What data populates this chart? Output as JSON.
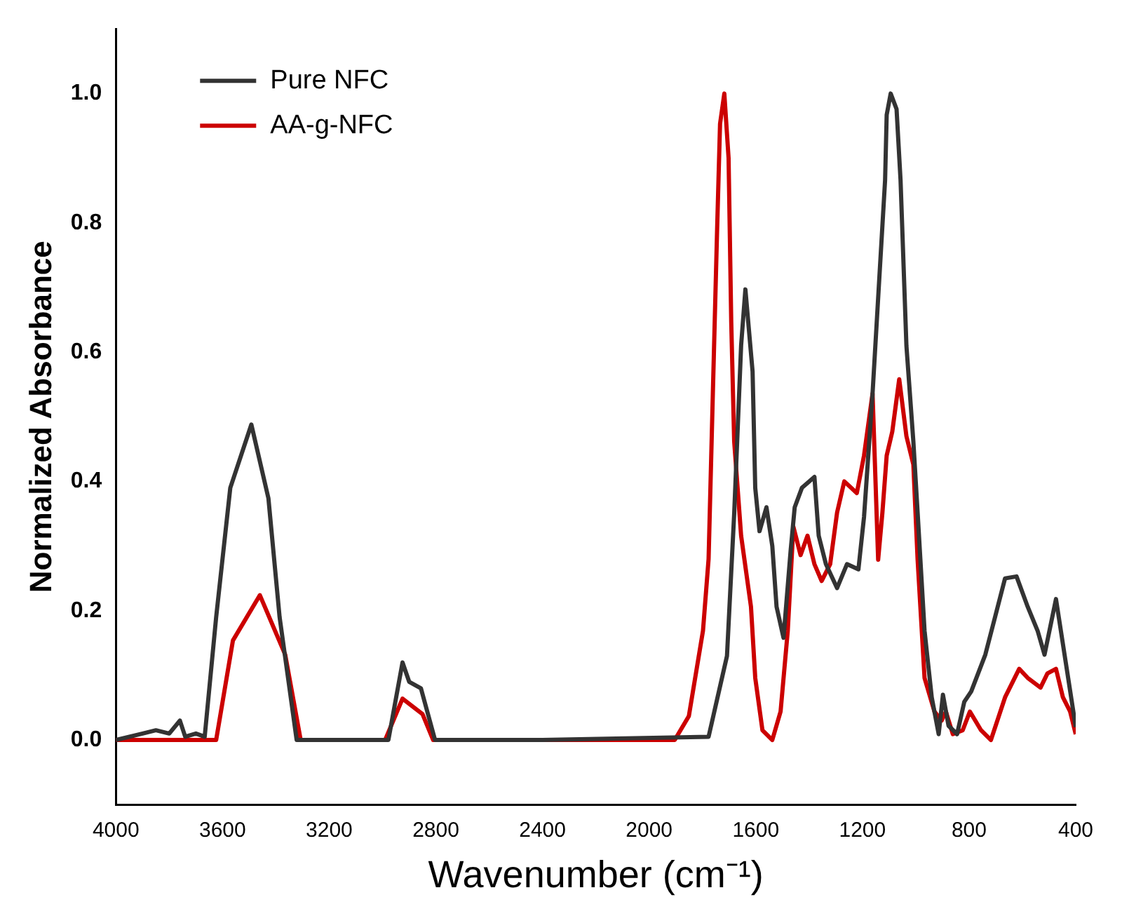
{
  "chart_data": {
    "type": "line",
    "xlabel": "Wavenumber (cm⁻¹)",
    "ylabel": "Normalized Absorbance",
    "xlim": [
      4000,
      400
    ],
    "xticks": [
      4000,
      3600,
      3200,
      2800,
      2400,
      2000,
      1600,
      1200,
      800,
      400
    ],
    "ylim": [
      -0.1,
      1.1
    ],
    "yticks": [
      {
        "value": 0,
        "label": "0.0"
      },
      {
        "value": 0.2,
        "label": "0.2"
      },
      {
        "value": 0.4,
        "label": "0.4"
      },
      {
        "value": 0.6,
        "label": "0.6"
      },
      {
        "value": 0.8,
        "label": "0.8"
      },
      {
        "value": 1,
        "label": "1.0"
      }
    ],
    "grid": false,
    "legend": "top left",
    "marker": "none",
    "line_style": "solid",
    "series": [
      {
        "name": "Pure NFC",
        "color": "#333333",
        "x": [
          4000,
          3900,
          3850,
          3800,
          3760,
          3740,
          3700,
          3667,
          3624,
          3571,
          3492,
          3428,
          3386,
          3322,
          2978,
          2925,
          2900,
          2856,
          2803,
          2400,
          1777,
          1708,
          1681,
          1655,
          1639,
          1612,
          1602,
          1586,
          1560,
          1538,
          1522,
          1496,
          1469,
          1454,
          1427,
          1380,
          1364,
          1337,
          1295,
          1258,
          1215,
          1194,
          1162,
          1136,
          1115,
          1109,
          1094,
          1072,
          1057,
          1035,
          1009,
          993,
          967,
          940,
          914,
          898,
          877,
          845,
          818,
          792,
          739,
          702,
          665,
          622,
          580,
          543,
          517,
          474,
          437,
          400
        ],
        "values": [
          0,
          0.01,
          0.015,
          0.01,
          0.03,
          0.005,
          0.01,
          0.005,
          0.19,
          0.39,
          0.488,
          0.374,
          0.19,
          0,
          0,
          0.12,
          0.09,
          0.08,
          0,
          0,
          0.005,
          0.13,
          0.35,
          0.61,
          0.697,
          0.57,
          0.39,
          0.323,
          0.36,
          0.3,
          0.206,
          0.158,
          0.294,
          0.36,
          0.39,
          0.407,
          0.316,
          0.272,
          0.235,
          0.272,
          0.264,
          0.345,
          0.536,
          0.719,
          0.866,
          0.967,
          1,
          0.976,
          0.866,
          0.61,
          0.462,
          0.352,
          0.169,
          0.066,
          0.009,
          0.07,
          0.022,
          0.009,
          0.059,
          0.075,
          0.132,
          0.191,
          0.25,
          0.253,
          0.206,
          0.169,
          0.132,
          0.218,
          0.119,
          0.02
        ]
      },
      {
        "name": "AA-g-NFC",
        "color": "#cc0000",
        "x": [
          4000,
          3624,
          3561,
          3460,
          3365,
          3307,
          2990,
          2925,
          2850,
          2810,
          1904,
          1851,
          1798,
          1777,
          1761,
          1745,
          1734,
          1718,
          1702,
          1692,
          1681,
          1655,
          1618,
          1602,
          1575,
          1538,
          1507,
          1480,
          1459,
          1432,
          1406,
          1380,
          1353,
          1321,
          1295,
          1268,
          1221,
          1194,
          1162,
          1141,
          1125,
          1109,
          1088,
          1062,
          1035,
          1009,
          993,
          967,
          930,
          903,
          887,
          861,
          824,
          797,
          755,
          718,
          665,
          612,
          580,
          532,
          506,
          474,
          448,
          421,
          400
        ],
        "values": [
          0,
          0,
          0.154,
          0.224,
          0.132,
          0,
          0,
          0.064,
          0.04,
          0,
          0,
          0.037,
          0.169,
          0.28,
          0.536,
          0.79,
          0.953,
          1,
          0.9,
          0.646,
          0.462,
          0.316,
          0.206,
          0.096,
          0.015,
          0,
          0.044,
          0.169,
          0.33,
          0.286,
          0.316,
          0.272,
          0.246,
          0.272,
          0.352,
          0.4,
          0.382,
          0.44,
          0.536,
          0.279,
          0.352,
          0.44,
          0.477,
          0.558,
          0.47,
          0.426,
          0.279,
          0.096,
          0.044,
          0.03,
          0.044,
          0.009,
          0.015,
          0.044,
          0.015,
          0,
          0.066,
          0.11,
          0.096,
          0.081,
          0.103,
          0.11,
          0.066,
          0.044,
          0.009
        ]
      }
    ]
  }
}
